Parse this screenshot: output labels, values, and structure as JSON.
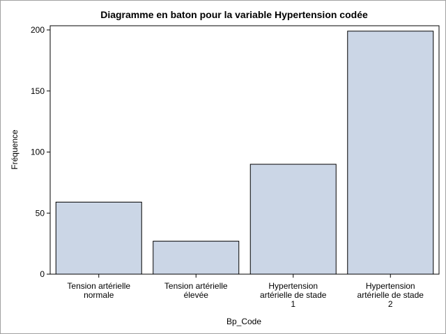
{
  "chart_data": {
    "type": "bar",
    "title": "Diagramme en baton pour la variable Hypertension codée",
    "xlabel": "Bp_Code",
    "ylabel": "Fréquence",
    "ylim": [
      0,
      200
    ],
    "yticks": [
      "0",
      "50",
      "100",
      "150",
      "200"
    ],
    "categories": [
      [
        "Tension artérielle",
        "normale"
      ],
      [
        "Tension artérielle",
        "élevée"
      ],
      [
        "Hypertension",
        "artérielle de stade",
        "1"
      ],
      [
        "Hypertension",
        "artérielle de stade",
        "2"
      ]
    ],
    "values": [
      59,
      27,
      90,
      199
    ],
    "bar_color": "#cbd6e6",
    "bar_stroke": "#000000",
    "grid": false
  }
}
